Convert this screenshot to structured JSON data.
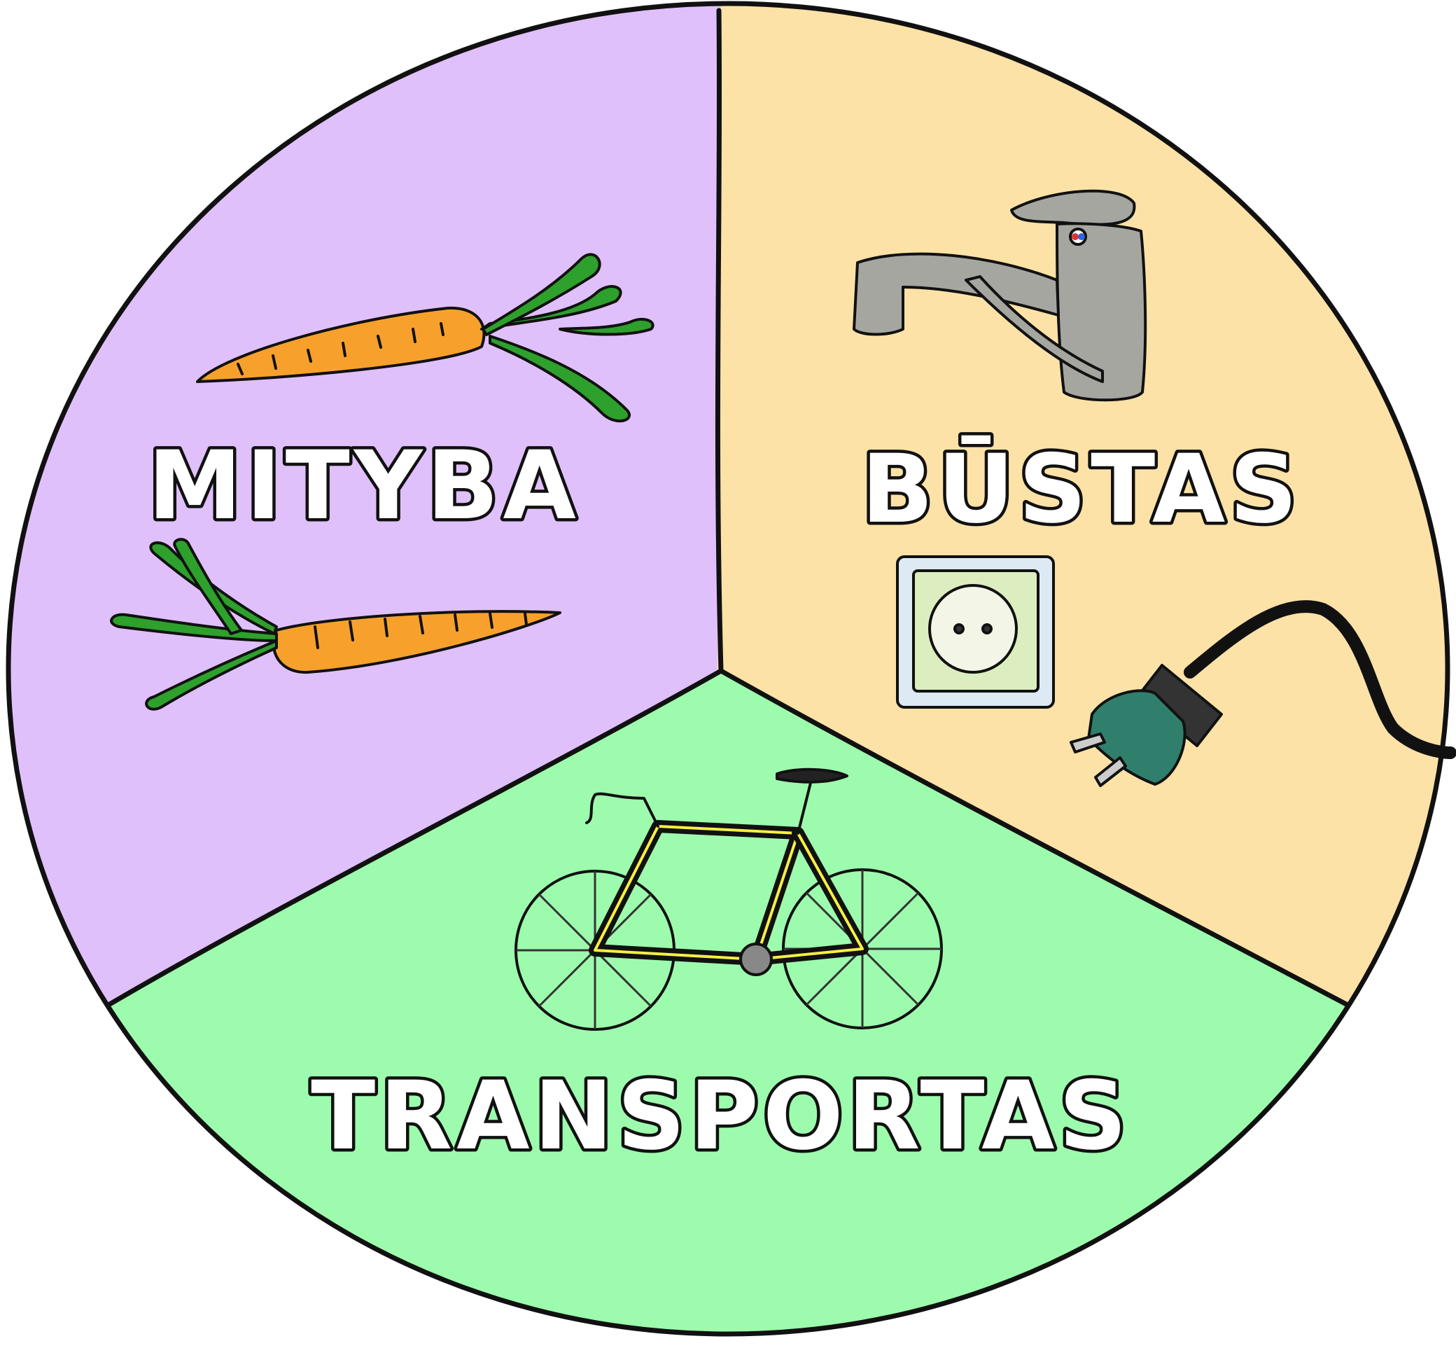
{
  "diagram": {
    "type": "pie-illustration",
    "segments": [
      {
        "id": "mityba",
        "label": "MITYBA",
        "color": "#e0c0fb",
        "icons": [
          "carrot-icon",
          "carrot-icon"
        ]
      },
      {
        "id": "bustas",
        "label": "BŪSTAS",
        "color": "#fde2a7",
        "icons": [
          "faucet-icon",
          "power-socket-icon",
          "power-plug-icon"
        ]
      },
      {
        "id": "transportas",
        "label": "TRANSPORTAS",
        "color": "#9dfbad",
        "icons": [
          "bicycle-icon"
        ]
      }
    ],
    "colors": {
      "outline": "#111111",
      "carrot": "#f7a12c",
      "carrot_leaves": "#2ea02c",
      "faucet": "#a6a6a0",
      "socket_plate": "#dceebf",
      "plug": "#2f7f6c",
      "bicycle_frame": "#f5ef45",
      "bicycle_wheel": "#a8a8a8"
    }
  }
}
